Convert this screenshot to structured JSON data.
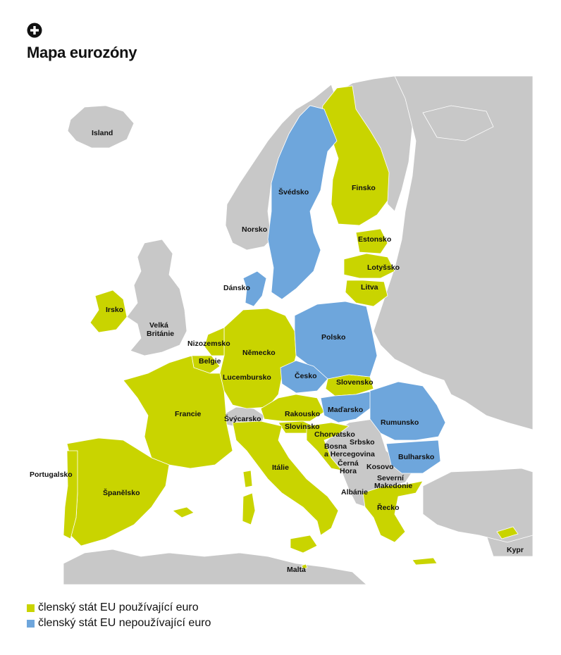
{
  "title": "Mapa eurozóny",
  "colors": {
    "euro": "#c9d400",
    "non_euro": "#6ea6dc",
    "other": "#c8c8c8",
    "sea": "#ffffff"
  },
  "legend": [
    {
      "label": "členský stát EU používající euro",
      "color": "#c9d400"
    },
    {
      "label": "členský stát EU nepoužívající euro",
      "color": "#6ea6dc"
    }
  ],
  "countries": {
    "island": "Island",
    "norsko": "Norsko",
    "svedsko": "Švédsko",
    "finsko": "Finsko",
    "estonsko": "Estonsko",
    "lotyssko": "Lotyšsko",
    "litva": "Litva",
    "dansko": "Dánsko",
    "irsko": "Irsko",
    "velka_britanie_1": "Velká",
    "velka_britanie_2": "Británie",
    "nizozemsko": "Nizozemsko",
    "belgie": "Belgie",
    "nemecko": "Německo",
    "polsko": "Polsko",
    "lucembursko": "Lucembursko",
    "cesko": "Česko",
    "slovensko": "Slovensko",
    "francie": "Francie",
    "svycarsko": "Švýcarsko",
    "rakousko": "Rakousko",
    "madarsko": "Maďarsko",
    "rumunsko": "Rumunsko",
    "slovinsko": "Slovinsko",
    "chorvatsko": "Chorvatsko",
    "srbsko": "Srbsko",
    "bosna_1": "Bosna",
    "bosna_2": "a Hercegovina",
    "cerna_hora_1": "Černá",
    "cerna_hora_2": "Hora",
    "kosovo": "Kosovo",
    "bulharsko": "Bulharsko",
    "portugalsko": "Portugalsko",
    "spanelsko": "Španělsko",
    "italie": "Itálie",
    "severni_makedonie_1": "Severní",
    "severni_makedonie_2": "Makedonie",
    "albanie": "Albánie",
    "recko": "Řecko",
    "malta": "Malta",
    "kypr": "Kypr"
  }
}
